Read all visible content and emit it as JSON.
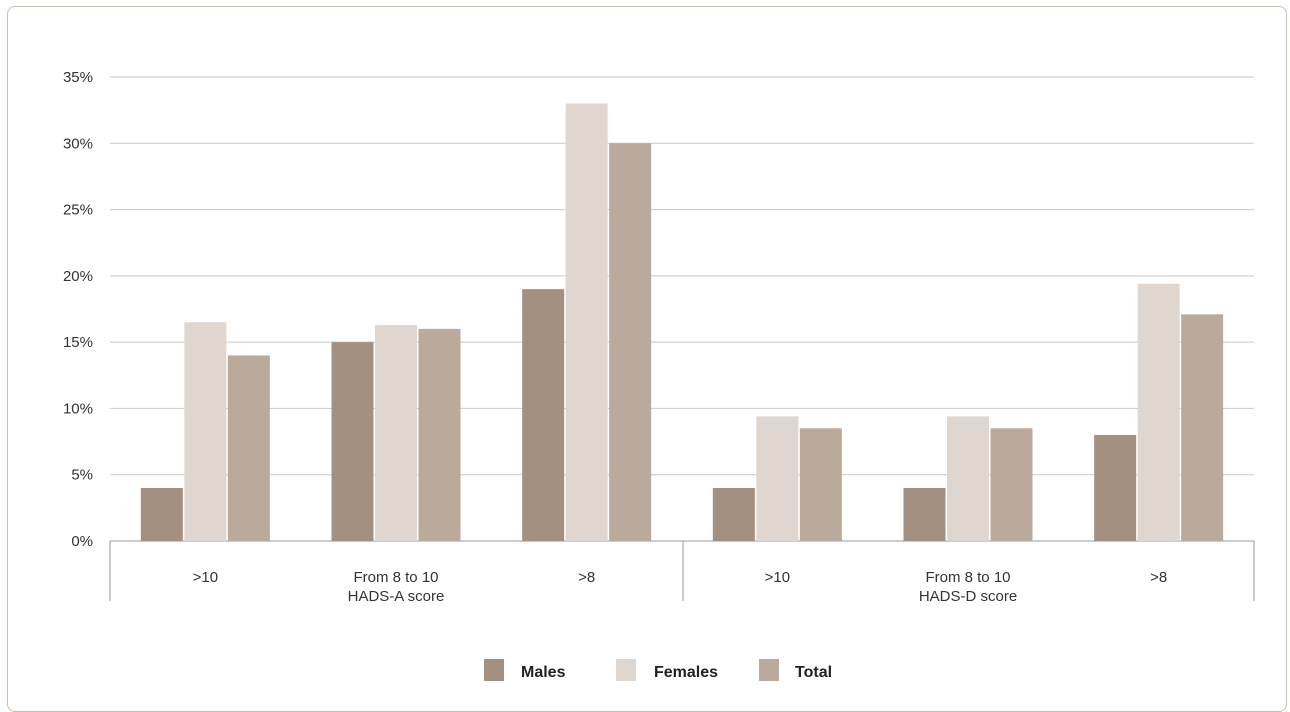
{
  "chart_data": {
    "type": "bar",
    "title": "",
    "ylabel": "",
    "ylim": [
      0,
      35
    ],
    "yticks": [
      "0%",
      "5%",
      "10%",
      "15%",
      "20%",
      "25%",
      "30%",
      "35%"
    ],
    "grid": true,
    "legend_position": "bottom-center",
    "categories": [
      ">10",
      "From 8 to 10",
      ">8",
      ">10",
      "From 8 to 10",
      ">8"
    ],
    "groups": [
      {
        "label": "HADS-A score",
        "category_indices": [
          0,
          1,
          2
        ]
      },
      {
        "label": "HADS-D score",
        "category_indices": [
          3,
          4,
          5
        ]
      }
    ],
    "series": [
      {
        "name": "Males",
        "color": "#a49080",
        "values": [
          4.0,
          15.0,
          19.0,
          4.0,
          4.0,
          8.0
        ]
      },
      {
        "name": "Females",
        "color": "#ded6cf",
        "values": [
          16.5,
          16.3,
          33.0,
          9.4,
          9.4,
          19.4
        ]
      },
      {
        "name": "Total",
        "color": "#b9aa9c",
        "values": [
          14.0,
          16.0,
          30.0,
          8.5,
          8.5,
          17.1
        ]
      }
    ]
  }
}
